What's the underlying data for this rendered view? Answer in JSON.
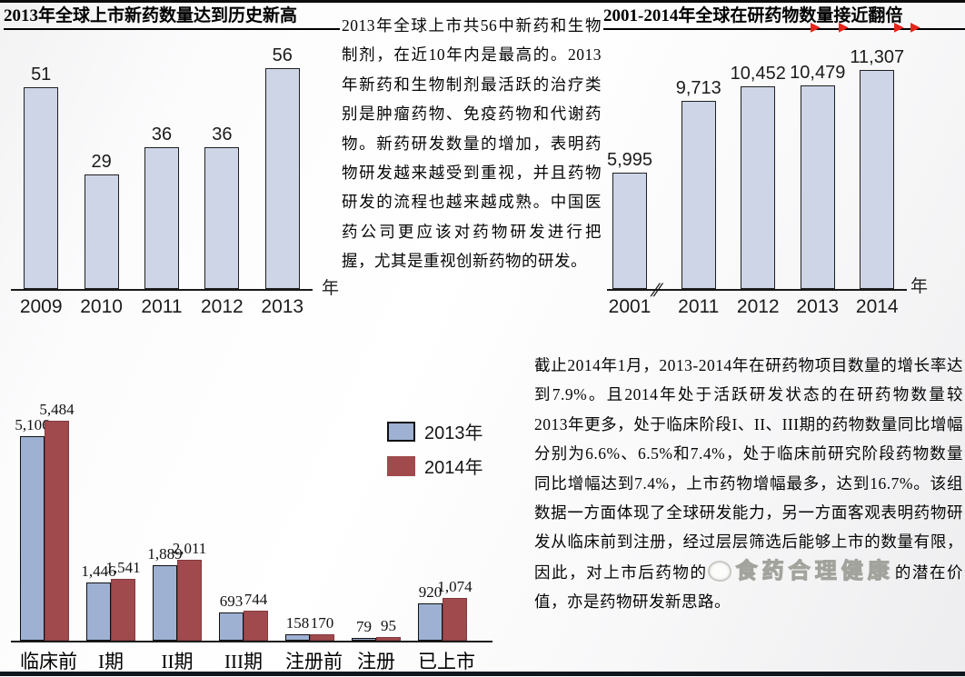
{
  "texts": {
    "top_commentary": "2013年全球上市共56中新药和生物制剂，在近10年内是最高的。2013年新药和生物制剂最活跃的治疗类别是肿瘤药物、免疫药物和代谢药物。新药研发数量的增加，表明药物研发越来越受到重视，并且药物研发的流程也越来越成熟。中国医药公司更应该对药物研发进行把握，尤其是重视创新药物的研发。",
    "bottom_part1": "截止2014年1月，2013-2014年在研药物项目数量的增长率达到7.9%。且2014年处于活跃研发状态的在研药物数量较2013年更多，处于临床阶段I、II、III期的药物数量同比增幅分别为6.6%、6.5%和7.4%，处于临床前研究阶段药物数量同比增幅达到7.4%，上市药物增幅最多，达到16.7%。该组数据一方面体现了全球研发能力，另一方面客观表明药物研发从临床前到注册，经过层层筛选后能够上市的数量有限，因此，对上市后药物的",
    "bottom_part2": "的潜在价值，亦是药物研发新思路。"
  },
  "watermark": {
    "text": "食药合理健康"
  },
  "decor": {
    "triangle": "▶",
    "triangle_color": "#e6261b"
  },
  "chart_data": [
    {
      "type": "bar",
      "title": "2013年全球上市新药数量达到历史新高",
      "categories": [
        "2009",
        "2010",
        "2011",
        "2012",
        "2013"
      ],
      "values": [
        51,
        29,
        36,
        36,
        56
      ],
      "value_labels": [
        "51",
        "29",
        "36",
        "36",
        "56"
      ],
      "xlabel": "年",
      "ylabel": "",
      "ylim": [
        0,
        58
      ],
      "grid": false,
      "bar_color": "#cdd5e7",
      "bar_border": "#202020"
    },
    {
      "type": "bar",
      "title": "2001-2014年全球在研药物数量接近翻倍",
      "categories": [
        "2001",
        "2011",
        "2012",
        "2013",
        "2014"
      ],
      "values": [
        5995,
        9713,
        10452,
        10479,
        11307
      ],
      "value_labels": [
        "5,995",
        "9,713",
        "10,452",
        "10,479",
        "11,307"
      ],
      "xlabel": "年",
      "ylabel": "",
      "ylim": [
        0,
        11800
      ],
      "axis_break": "//",
      "grid": false,
      "bar_color": "#cdd5e7",
      "bar_border": "#202020"
    },
    {
      "type": "grouped-bar",
      "title": "",
      "categories": [
        "临床前",
        "I期",
        "II期",
        "III期",
        "注册前",
        "注册",
        "已上市"
      ],
      "series": [
        {
          "name": "2013年",
          "color": "#9eb1d3",
          "border": "#101010",
          "values": [
            5106,
            1446,
            1889,
            693,
            158,
            79,
            920
          ],
          "value_labels": [
            "5,106",
            "1,446",
            "1,889",
            "693",
            "158",
            "79",
            "920"
          ]
        },
        {
          "name": "2014年",
          "color": "#a04a4e",
          "border": "#823a3e",
          "values": [
            5484,
            1541,
            2011,
            744,
            170,
            95,
            1074
          ],
          "value_labels": [
            "5,484",
            "1,541",
            "2,011",
            "744",
            "170",
            "95",
            "1,074"
          ]
        }
      ],
      "ylim": [
        0,
        5650
      ],
      "legend_position": "right",
      "grid": false
    }
  ]
}
